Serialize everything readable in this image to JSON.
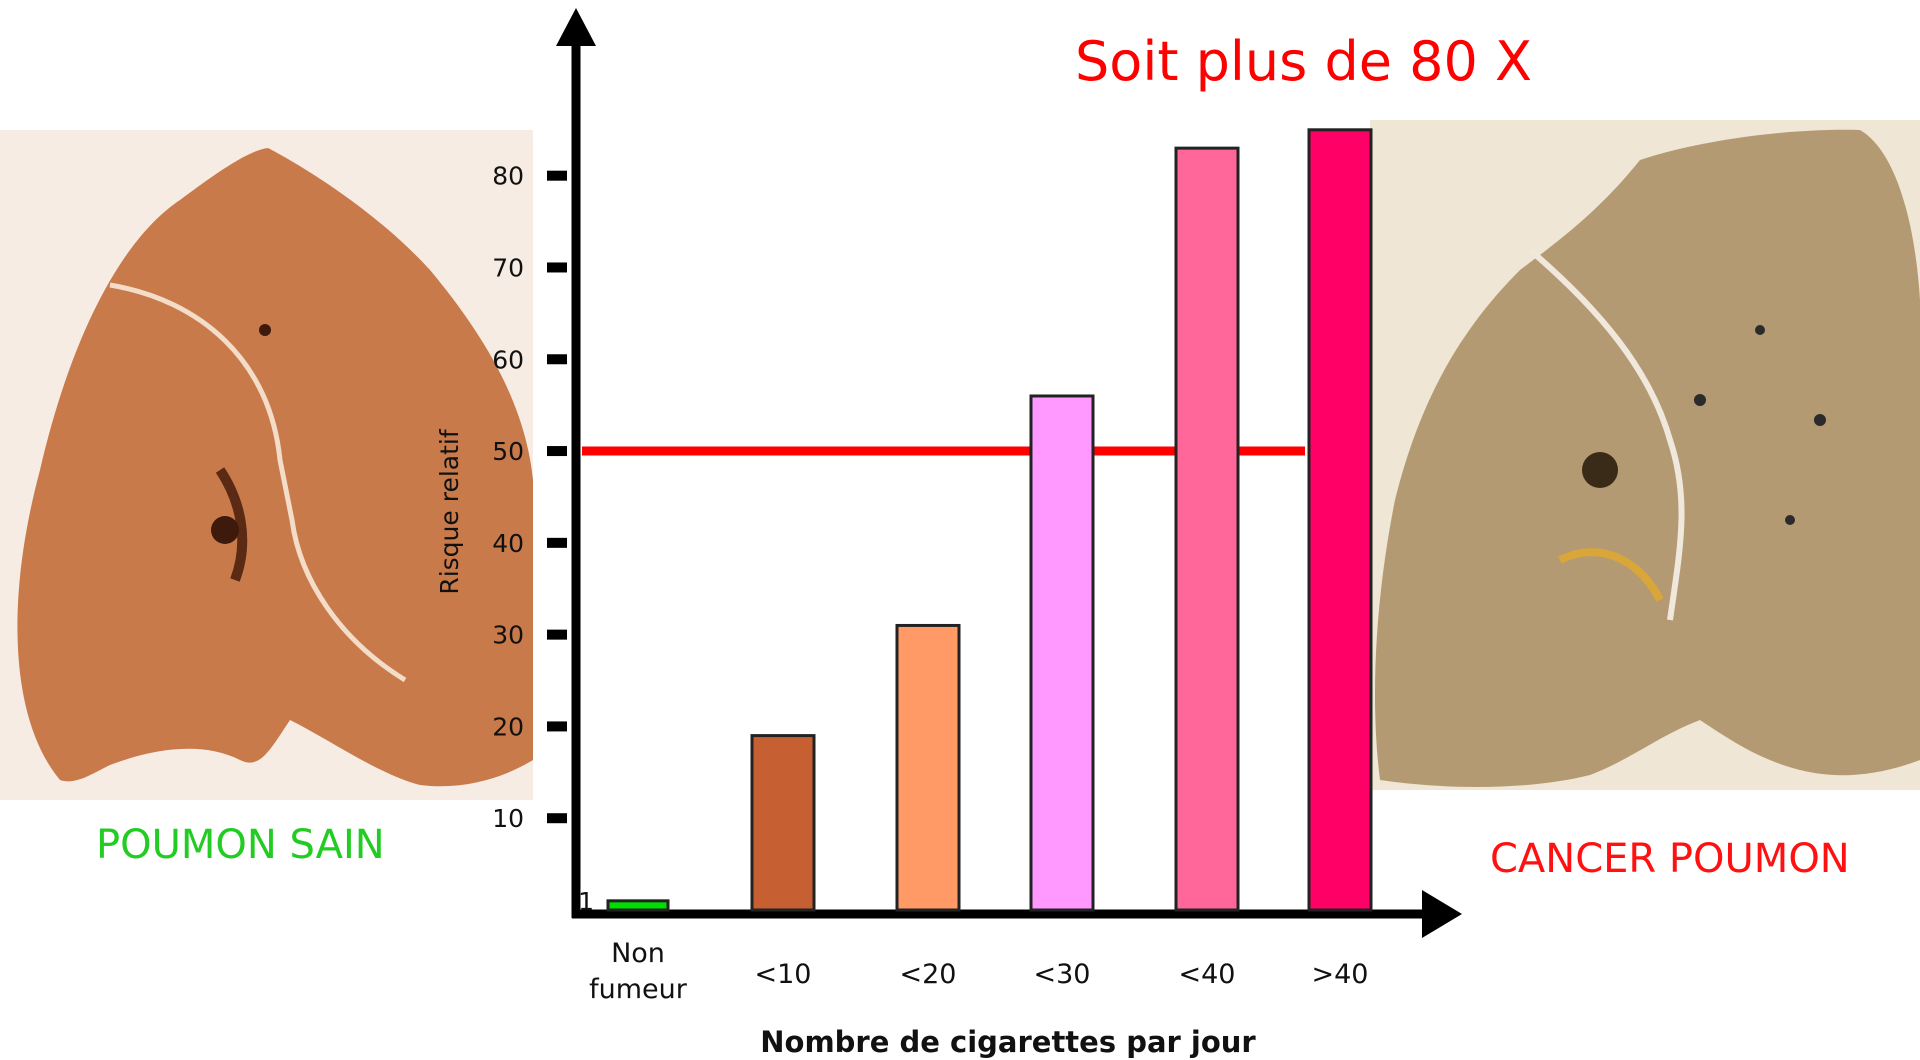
{
  "headline": "Soit plus de 80 X",
  "left_panel": {
    "caption": "POUMON SAIN",
    "caption_color": "#22cc22",
    "image_icon": "healthy-lung-icon"
  },
  "right_panel": {
    "caption": "CANCER POUMON",
    "caption_color": "#ff1111",
    "image_icon": "cancer-lung-icon"
  },
  "chart_data": {
    "type": "bar",
    "xlabel": "Nombre de cigarettes par jour",
    "ylabel": "Risque relatif",
    "categories": [
      "Non fumeur",
      "<10",
      "<20",
      "<30",
      "<40",
      ">40"
    ],
    "values": [
      1,
      19,
      31,
      56,
      83,
      85
    ],
    "colors": [
      "#00dd00",
      "#c66033",
      "#ff9966",
      "#ff99ff",
      "#ff6699",
      "#ff0066"
    ],
    "yticks": [
      1,
      10,
      20,
      30,
      40,
      50,
      60,
      70,
      80
    ],
    "ylim": [
      0,
      95
    ],
    "reference_line": {
      "y": 50,
      "color": "#ff0000"
    },
    "grid": false,
    "legend": "none"
  }
}
